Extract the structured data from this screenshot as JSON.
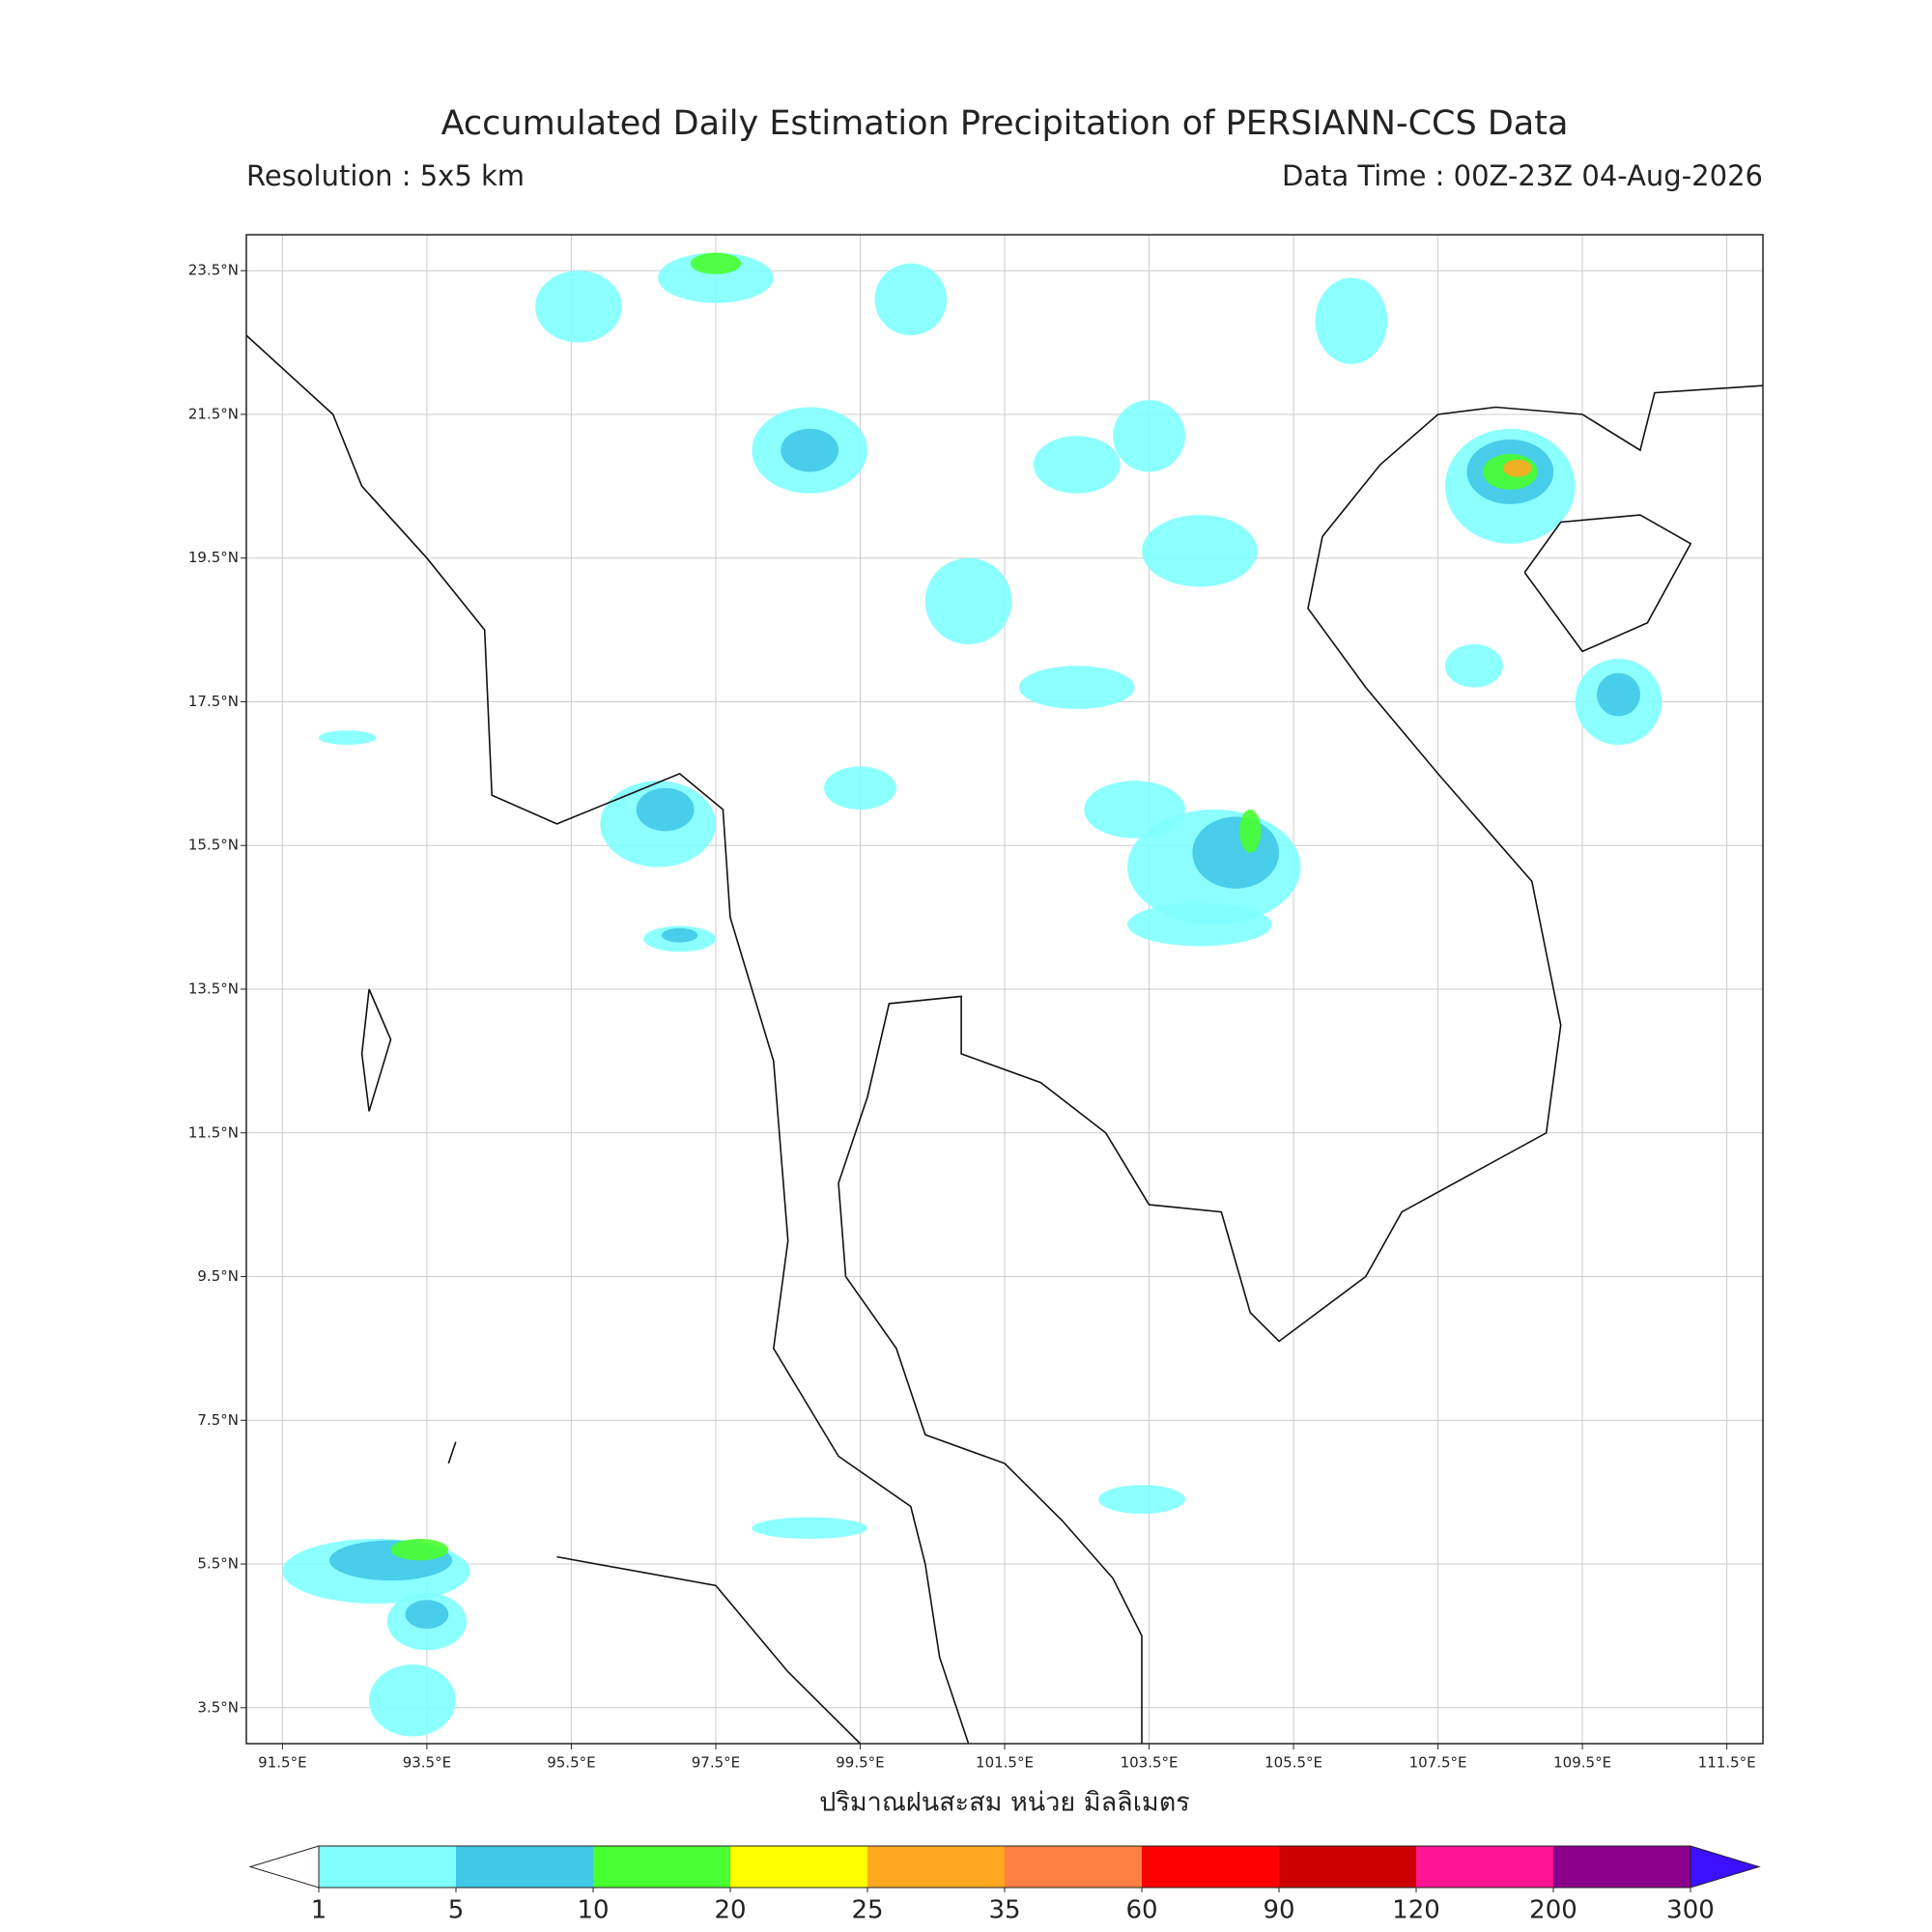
{
  "map": {
    "title": "Accumulated Daily Estimation Precipitation of PERSIANN-CCS Data",
    "resolution": "Resolution : 5x5 km",
    "data_time": "Data Time : 00Z-23Z 04-Aug-2026",
    "xlabel": "ปริมาณฝนสะสม หน่วย มิลลิเมตร",
    "xlim": [
      91.0,
      112.0
    ],
    "ylim": [
      3.0,
      24.0
    ],
    "xticks": [
      {
        "value": 91.5,
        "label": "91.5°E"
      },
      {
        "value": 93.5,
        "label": "93.5°E"
      },
      {
        "value": 95.5,
        "label": "95.5°E"
      },
      {
        "value": 97.5,
        "label": "97.5°E"
      },
      {
        "value": 99.5,
        "label": "99.5°E"
      },
      {
        "value": 101.5,
        "label": "101.5°E"
      },
      {
        "value": 103.5,
        "label": "103.5°E"
      },
      {
        "value": 105.5,
        "label": "105.5°E"
      },
      {
        "value": 107.5,
        "label": "107.5°E"
      },
      {
        "value": 109.5,
        "label": "109.5°E"
      },
      {
        "value": 111.5,
        "label": "111.5°E"
      }
    ],
    "yticks": [
      {
        "value": 23.5,
        "label": "23.5°N"
      },
      {
        "value": 21.5,
        "label": "21.5°N"
      },
      {
        "value": 19.5,
        "label": "19.5°N"
      },
      {
        "value": 17.5,
        "label": "17.5°N"
      },
      {
        "value": 15.5,
        "label": "15.5°N"
      },
      {
        "value": 13.5,
        "label": "13.5°N"
      },
      {
        "value": 11.5,
        "label": "11.5°N"
      },
      {
        "value": 9.5,
        "label": "9.5°N"
      },
      {
        "value": 7.5,
        "label": "7.5°N"
      },
      {
        "value": 5.5,
        "label": "5.5°N"
      },
      {
        "value": 3.5,
        "label": "3.5°N"
      }
    ],
    "colorbar": {
      "levels": [
        1,
        5,
        10,
        20,
        25,
        35,
        60,
        90,
        120,
        200,
        300
      ],
      "colors": [
        "#80ffff",
        "#40c8e8",
        "#48ff30",
        "#ffff00",
        "#ffa820",
        "#ff8040",
        "#ff0000",
        "#cc0000",
        "#ff1493",
        "#8b008b"
      ],
      "under_color": "#ffffff",
      "over_color": "#3a10ff"
    }
  }
}
